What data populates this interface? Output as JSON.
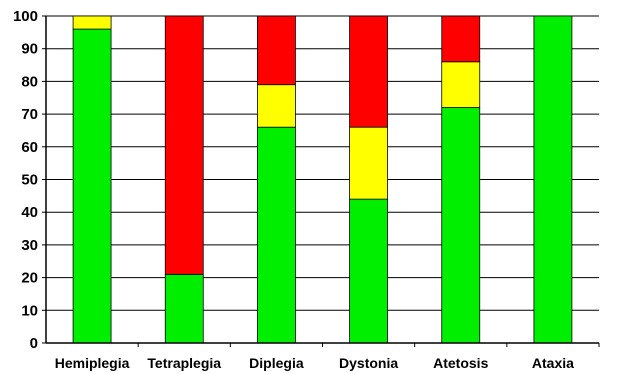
{
  "chart_data": {
    "type": "bar",
    "stacked": true,
    "title": "",
    "xlabel": "",
    "ylabel": "",
    "ylim": [
      0,
      100
    ],
    "y_ticks": [
      0,
      10,
      20,
      30,
      40,
      50,
      60,
      70,
      80,
      90,
      100
    ],
    "grid": true,
    "legend": "none",
    "categories": [
      "Hemiplegia",
      "Tetraplegia",
      "Diplegia",
      "Dystonia",
      "Atetosis",
      "Ataxia"
    ],
    "series": [
      {
        "color": "#00ee00",
        "values": [
          96,
          21,
          66,
          44,
          72,
          100
        ]
      },
      {
        "color": "#ffff00",
        "values": [
          4,
          0,
          13,
          22,
          14,
          0
        ]
      },
      {
        "color": "#ff0000",
        "values": [
          0,
          79,
          21,
          34,
          14,
          0
        ]
      }
    ]
  }
}
